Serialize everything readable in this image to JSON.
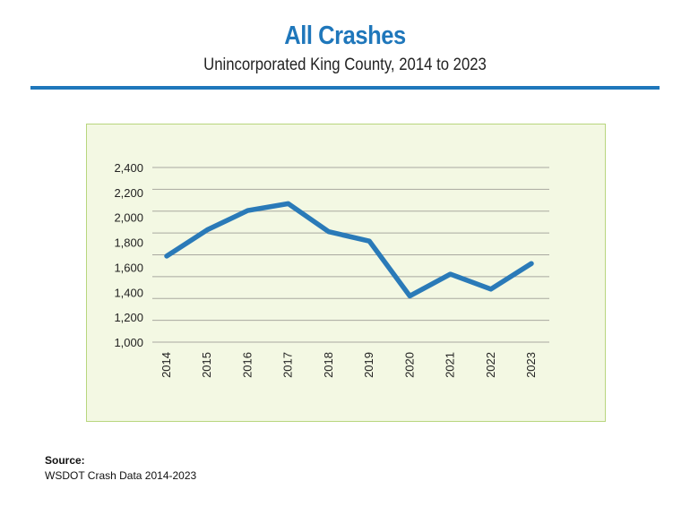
{
  "chart_data": {
    "type": "line",
    "title": "All Crashes",
    "subtitle": "Unincorporated King County, 2014 to 2023",
    "xlabel": "",
    "ylabel": "",
    "categories": [
      "2014",
      "2015",
      "2016",
      "2017",
      "2018",
      "2019",
      "2020",
      "2021",
      "2022",
      "2023"
    ],
    "values": [
      1690,
      1900,
      2055,
      2110,
      1885,
      1810,
      1370,
      1545,
      1425,
      1630
    ],
    "ylim": [
      1000,
      2400
    ],
    "yticks": [
      "1,000",
      "1,200",
      "1,400",
      "1,600",
      "1,800",
      "2,000",
      "2,200",
      "2,400"
    ],
    "ytick_values": [
      1000,
      1200,
      1400,
      1600,
      1800,
      2000,
      2200,
      2400
    ],
    "grid": true,
    "line_color": "#2a7ab8",
    "background_color": "#f3f8e3"
  },
  "source": {
    "label": "Source:",
    "text": "WSDOT Crash Data 2014-2023"
  }
}
